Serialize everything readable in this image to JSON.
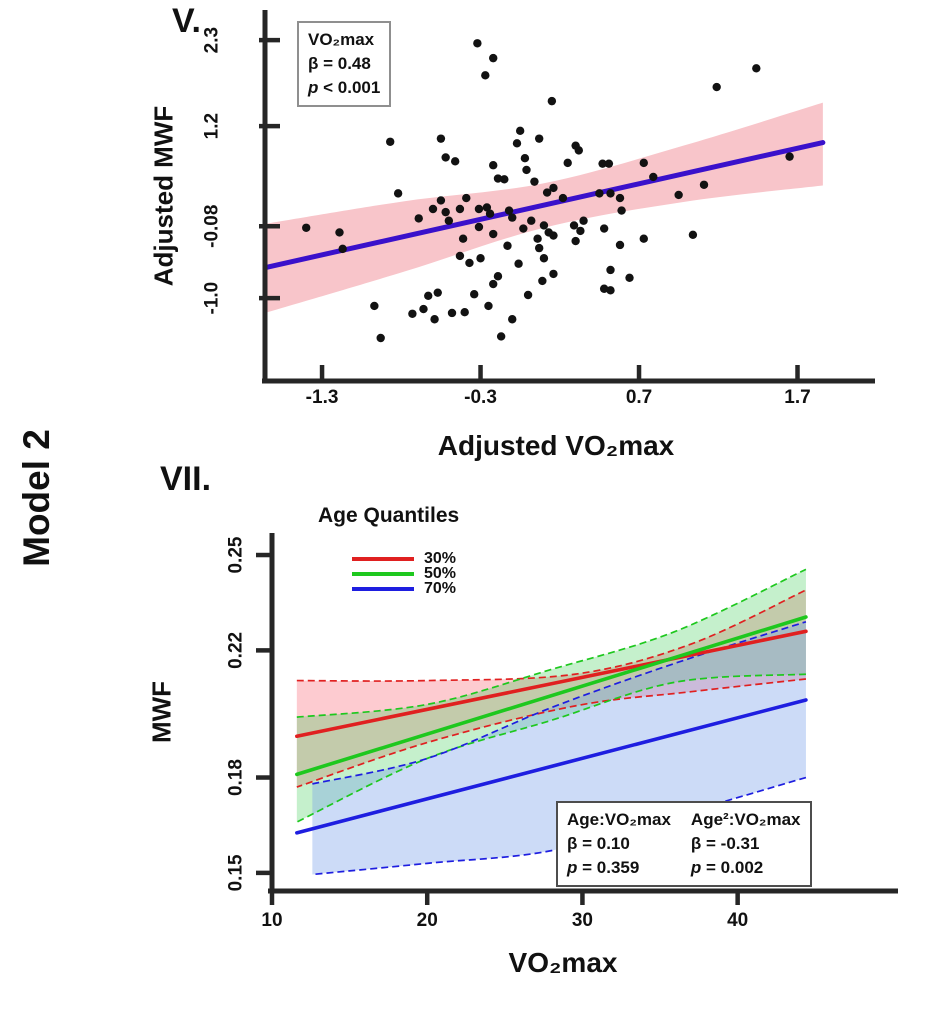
{
  "page": {
    "model_label": "Model 2"
  },
  "panel_v": {
    "label": "V.",
    "y_axis_label": "Adjusted MWF",
    "x_axis_label": "Adjusted VO₂max",
    "stats_box": {
      "title": "VO₂max",
      "beta": "β = 0.48",
      "p_label": "p",
      "p_rest": " < 0.001"
    }
  },
  "panel_vii": {
    "label": "VII.",
    "y_axis_label": "MWF",
    "x_axis_label": "VO₂max",
    "legend": {
      "title": "Age Quantiles",
      "entries": [
        {
          "label": "30%"
        },
        {
          "label": "50%"
        },
        {
          "label": "70%"
        }
      ]
    },
    "stats_box": {
      "col1": {
        "title": "Age:VO₂max",
        "beta": "β = 0.10",
        "p_label": "p",
        "p_rest": " = 0.359"
      },
      "col2": {
        "title": "Age²:VO₂max",
        "beta": "β = -0.31",
        "p_label": "p",
        "p_rest": " = 0.002"
      }
    }
  },
  "chart_data": [
    {
      "type": "scatter",
      "title": "Adjusted MWF vs Adjusted VO2max with linear fit",
      "xlabel": "Adjusted VO₂max",
      "ylabel": "Adjusted MWF",
      "x_ticks": [
        "-1.3",
        "-0.3",
        "0.7",
        "1.7"
      ],
      "y_ticks": [
        "2.3",
        "1.2",
        "-0.08",
        "-1.0"
      ],
      "xlim": [
        -1.66,
        2.17
      ],
      "ylim": [
        -2.06,
        2.66
      ],
      "grid": false,
      "regression": {
        "label": "VO₂max",
        "beta": 0.48,
        "p": "< 0.001",
        "color": "#3a11cb",
        "band_color": "#f8c5ca",
        "line_x": [
          -1.66,
          1.86
        ],
        "line_y": [
          -0.61,
          0.99
        ],
        "band": {
          "x": [
            -1.66,
            -0.78,
            0.1,
            0.98,
            1.86
          ],
          "upper": [
            -0.05,
            0.24,
            0.47,
            0.95,
            1.5
          ],
          "lower": [
            -1.19,
            -0.66,
            -0.1,
            0.23,
            0.44
          ]
        }
      },
      "points": [
        [
          -0.32,
          2.26
        ],
        [
          -0.22,
          2.07
        ],
        [
          -0.27,
          1.85
        ],
        [
          0.15,
          1.52
        ],
        [
          -0.05,
          1.14
        ],
        [
          -0.87,
          1.0
        ],
        [
          -0.55,
          1.04
        ],
        [
          -0.07,
          0.98
        ],
        [
          0.07,
          1.04
        ],
        [
          -0.52,
          0.8
        ],
        [
          -0.46,
          0.75
        ],
        [
          -0.22,
          0.7
        ],
        [
          -0.02,
          0.79
        ],
        [
          0.25,
          0.73
        ],
        [
          -0.01,
          0.64
        ],
        [
          -0.19,
          0.53
        ],
        [
          -0.15,
          0.52
        ],
        [
          0.04,
          0.49
        ],
        [
          0.16,
          0.41
        ],
        [
          0.12,
          0.35
        ],
        [
          -0.82,
          0.34
        ],
        [
          -0.39,
          0.28
        ],
        [
          0.22,
          0.28
        ],
        [
          1.44,
          1.94
        ],
        [
          1.19,
          1.7
        ],
        [
          0.3,
          0.95
        ],
        [
          0.32,
          0.89
        ],
        [
          0.47,
          0.72
        ],
        [
          0.51,
          0.72
        ],
        [
          0.73,
          0.73
        ],
        [
          0.79,
          0.55
        ],
        [
          1.65,
          0.81
        ],
        [
          1.11,
          0.45
        ],
        [
          0.95,
          0.32
        ],
        [
          0.45,
          0.34
        ],
        [
          0.52,
          0.34
        ],
        [
          0.58,
          0.28
        ],
        [
          -1.4,
          -0.1
        ],
        [
          -1.19,
          -0.16
        ],
        [
          -1.17,
          -0.37
        ],
        [
          -0.69,
          0.02
        ],
        [
          -0.6,
          0.14
        ],
        [
          -0.55,
          0.25
        ],
        [
          -0.52,
          0.1
        ],
        [
          -0.5,
          -0.01
        ],
        [
          -0.43,
          0.14
        ],
        [
          -0.41,
          -0.24
        ],
        [
          -0.43,
          -0.46
        ],
        [
          -0.37,
          -0.55
        ],
        [
          -0.31,
          0.14
        ],
        [
          -0.3,
          -0.49
        ],
        [
          -0.26,
          0.16
        ],
        [
          -0.24,
          0.08
        ],
        [
          -0.22,
          -0.18
        ],
        [
          -0.13,
          -0.33
        ],
        [
          -0.12,
          0.12
        ],
        [
          -0.1,
          0.03
        ],
        [
          -0.03,
          -0.11
        ],
        [
          0.02,
          -0.01
        ],
        [
          0.06,
          -0.24
        ],
        [
          0.07,
          -0.36
        ],
        [
          0.1,
          -0.49
        ],
        [
          0.1,
          -0.07
        ],
        [
          0.13,
          -0.16
        ],
        [
          0.16,
          -0.69
        ],
        [
          0.16,
          -0.2
        ],
        [
          -0.06,
          -0.56
        ],
        [
          -0.19,
          -0.72
        ],
        [
          -0.31,
          -0.09
        ],
        [
          -0.57,
          -0.93
        ],
        [
          -0.63,
          -0.97
        ],
        [
          -0.73,
          -1.2
        ],
        [
          -0.66,
          -1.14
        ],
        [
          -0.59,
          -1.27
        ],
        [
          -0.48,
          -1.19
        ],
        [
          -0.4,
          -1.18
        ],
        [
          -0.34,
          -0.95
        ],
        [
          -0.25,
          -1.1
        ],
        [
          -0.22,
          -0.82
        ],
        [
          -0.1,
          -1.27
        ],
        [
          -0.17,
          -1.49
        ],
        [
          -0.97,
          -1.1
        ],
        [
          -0.93,
          -1.51
        ],
        [
          0.0,
          -0.96
        ],
        [
          0.09,
          -0.78
        ],
        [
          0.35,
          -0.01
        ],
        [
          0.29,
          -0.07
        ],
        [
          0.33,
          -0.14
        ],
        [
          0.3,
          -0.27
        ],
        [
          0.48,
          -0.11
        ],
        [
          0.59,
          0.12
        ],
        [
          0.58,
          -0.32
        ],
        [
          0.73,
          -0.24
        ],
        [
          1.04,
          -0.19
        ],
        [
          0.52,
          -0.64
        ],
        [
          0.64,
          -0.74
        ],
        [
          0.48,
          -0.88
        ],
        [
          0.52,
          -0.9
        ]
      ]
    },
    {
      "type": "line",
      "title": "MWF vs VO2max by age quantile",
      "xlabel": "VO₂max",
      "ylabel": "MWF",
      "x_ticks": [
        "10",
        "20",
        "30",
        "40"
      ],
      "y_ticks": [
        "0.25",
        "0.22",
        "0.18",
        "0.15"
      ],
      "xlim": [
        10,
        49.3
      ],
      "ylim": [
        0.1443,
        0.2563
      ],
      "grid": false,
      "legend_title": "Age Quantiles",
      "legend_position": "top-left",
      "series": [
        {
          "name": "30%",
          "color": "#e02020",
          "band_fill": "rgba(250,130,142,0.42)",
          "x": [
            11.6,
            44.4
          ],
          "y": [
            0.193,
            0.226
          ],
          "band": {
            "x": [
              11.6,
              20.0,
              29.5,
              37.0,
              44.4
            ],
            "upper": [
              0.2105,
              0.2105,
              0.2125,
              0.222,
              0.239
            ],
            "lower": [
              0.177,
              0.191,
              0.2025,
              0.207,
              0.211
            ]
          }
        },
        {
          "name": "50%",
          "color": "#1ec81e",
          "band_fill": "rgba(62,205,85,0.30)",
          "x": [
            11.6,
            44.4
          ],
          "y": [
            0.181,
            0.2305
          ],
          "band": {
            "x": [
              11.6,
              20.0,
              28.0,
              36.0,
              44.4
            ],
            "upper": [
              0.199,
              0.203,
              0.214,
              0.226,
              0.2455
            ],
            "lower": [
              0.166,
              0.186,
              0.198,
              0.21,
              0.2125
            ]
          }
        },
        {
          "name": "70%",
          "color": "#1e1ee0",
          "band_fill": "rgba(122,160,235,0.38)",
          "x": [
            11.6,
            44.4
          ],
          "y": [
            0.1626,
            0.2044
          ],
          "band": {
            "x": [
              12.6,
              20.0,
              28.0,
              36.0,
              44.4
            ],
            "upper": [
              0.178,
              0.186,
              0.202,
              0.216,
              0.229
            ],
            "lower": [
              0.1495,
              0.153,
              0.157,
              0.168,
              0.18
            ]
          }
        }
      ],
      "interactions": [
        {
          "term": "Age:VO₂max",
          "beta": 0.1,
          "p": "= 0.359"
        },
        {
          "term": "Age²:VO₂max",
          "beta": -0.31,
          "p": "= 0.002"
        }
      ]
    }
  ]
}
